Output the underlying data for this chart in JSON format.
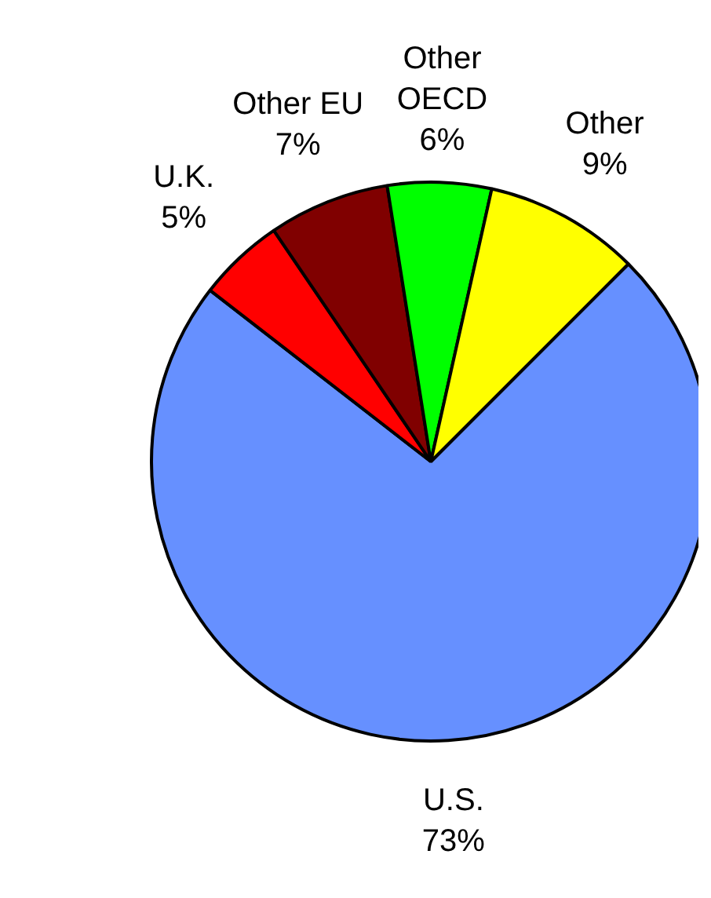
{
  "chart_data": {
    "type": "pie",
    "categories": [
      "U.S.",
      "U.K.",
      "Other EU",
      "Other OECD",
      "Other"
    ],
    "values": [
      73,
      5,
      7,
      6,
      9
    ],
    "value_labels": [
      "73%",
      "5%",
      "7%",
      "6%",
      "9%"
    ],
    "colors": [
      "#6690ff",
      "#ff0000",
      "#800000",
      "#00ff00",
      "#ffff00"
    ],
    "legend": false
  }
}
